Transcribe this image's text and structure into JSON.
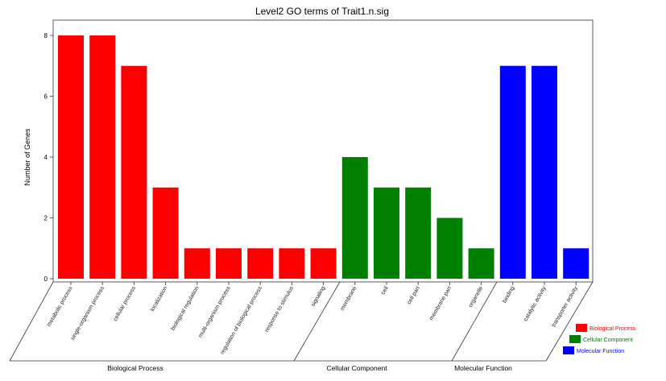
{
  "chart_data": {
    "type": "bar",
    "title": "Level2 GO terms of Trait1.n.sig",
    "ylabel": "Number of Genes",
    "xlabel": "",
    "ylim": [
      0,
      8
    ],
    "yticks": [
      "0",
      "2",
      "4",
      "6",
      "8"
    ],
    "categories": [
      "metabolic process",
      "single-organism process",
      "cellular process",
      "localization",
      "biological regulation",
      "multi-organism process",
      "regulation of biological process",
      "response to stimulus",
      "signaling",
      "membrane",
      "cell",
      "cell part",
      "membrane part",
      "organelle",
      "binding",
      "catalytic activity",
      "transporter activity"
    ],
    "values": [
      8,
      8,
      7,
      3,
      1,
      1,
      1,
      1,
      1,
      4,
      3,
      3,
      2,
      1,
      7,
      7,
      1
    ],
    "groups": [
      {
        "name": "Biological Process",
        "count": 9,
        "color": "#ff0000"
      },
      {
        "name": "Cellular Component",
        "count": 5,
        "color": "#008000"
      },
      {
        "name": "Molecular Function",
        "count": 3,
        "color": "#0000ff"
      }
    ],
    "legend": [
      "Biological Process",
      "Cellular Component",
      "Molecular Function"
    ],
    "legend_position": "bottom-right",
    "grid": false
  }
}
